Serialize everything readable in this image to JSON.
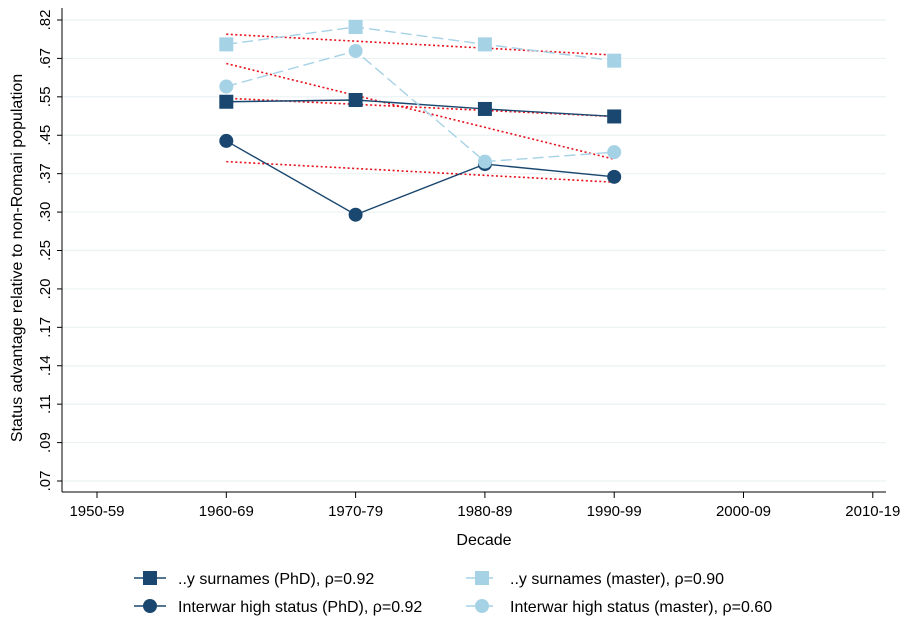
{
  "chart_data": {
    "type": "line",
    "xlabel": "Decade",
    "ylabel": "Status advantage relative to non-Romani population",
    "x_categories": [
      "1950-59",
      "1960-69",
      "1970-79",
      "1980-89",
      "1990-99",
      "2000-09",
      "2010-19"
    ],
    "y_ticks": [
      ".07",
      ".09",
      ".11",
      ".14",
      ".17",
      ".20",
      ".25",
      ".30",
      ".37",
      ".45",
      ".55",
      ".67",
      ".82"
    ],
    "grid": true,
    "legend_position": "bottom",
    "series": [
      {
        "name": "..y surnames (PhD), ρ=0.92",
        "marker": "square",
        "color": "#1a476f",
        "dash": "solid",
        "x": [
          "1960-69",
          "1970-79",
          "1980-89",
          "1990-99"
        ],
        "y": [
          0.53,
          0.535,
          0.51,
          0.49
        ],
        "trend": [
          0.54,
          0.49
        ]
      },
      {
        "name": "..y surnames (master), ρ=0.90",
        "marker": "square",
        "color": "#a6d2e6",
        "dash": "dashed",
        "x": [
          "1960-69",
          "1970-79",
          "1980-89",
          "1990-99"
        ],
        "y": [
          0.72,
          0.79,
          0.72,
          0.66
        ],
        "trend": [
          0.76,
          0.68
        ]
      },
      {
        "name": "Interwar high status (PhD), ρ=0.92",
        "marker": "circle",
        "color": "#1a476f",
        "dash": "solid",
        "x": [
          "1960-69",
          "1970-79",
          "1980-89",
          "1990-99"
        ],
        "y": [
          0.43,
          0.29,
          0.38,
          0.355
        ],
        "trend": [
          0.385,
          0.345
        ]
      },
      {
        "name": "Interwar high status (master), ρ=0.60",
        "marker": "circle",
        "color": "#a6d2e6",
        "dash": "dashed",
        "x": [
          "1960-69",
          "1970-79",
          "1980-89",
          "1990-99"
        ],
        "y": [
          0.575,
          0.695,
          0.385,
          0.405
        ],
        "trend": [
          0.65,
          0.39
        ]
      }
    ],
    "trend_line_color": "#e8101a"
  }
}
